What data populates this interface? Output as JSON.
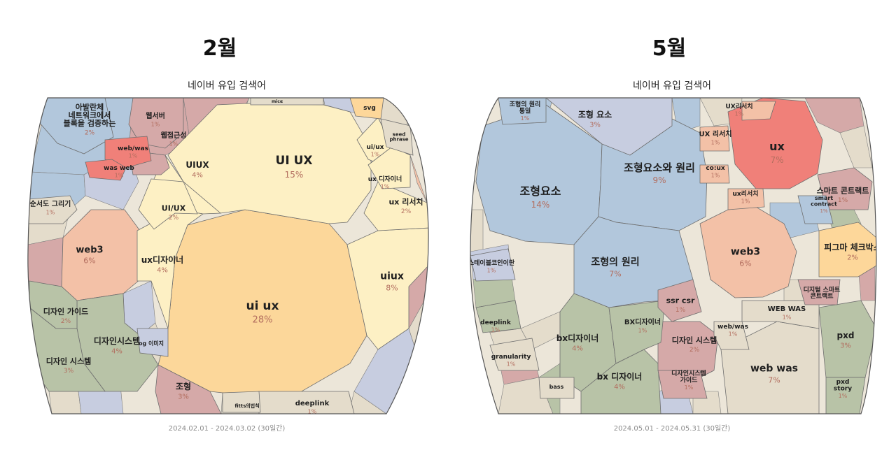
{
  "left": {
    "month": "2월",
    "chart_title": "네이버 유입 검색어",
    "date_range": "2024.02.01 - 2024.03.02 (30일간)"
  },
  "right": {
    "month": "5월",
    "chart_title": "네이버 유입 검색어",
    "date_range": "2024.05.01 - 2024.05.31 (30일간)"
  },
  "colors": {
    "orange": "#fcd79a",
    "light_yellow": "#fdf0c4",
    "peach": "#f3c1a7",
    "red": "#f08079",
    "blue": "#b2c7dc",
    "sage": "#b8c3a7",
    "mauve": "#d5a9a8",
    "beige": "#e4dccb",
    "lavender": "#c7cde0",
    "amber": "#fdd79a"
  },
  "chart_data": [
    {
      "type": "voronoi_treemap",
      "title": "네이버 유입 검색어",
      "month": "2월",
      "date_range": "2024.02.01 - 2024.03.02 (30일간)",
      "cells": [
        {
          "label": "ui ux",
          "value": 28,
          "pct": "28%",
          "color": "orange"
        },
        {
          "label": "UI UX",
          "value": 15,
          "pct": "15%",
          "color": "light_yellow"
        },
        {
          "label": "uiux",
          "value": 8,
          "pct": "8%",
          "color": "light_yellow"
        },
        {
          "label": "web3",
          "value": 6,
          "pct": "6%",
          "color": "peach"
        },
        {
          "label": "UIUX",
          "value": 4,
          "pct": "4%",
          "color": "light_yellow"
        },
        {
          "label": "ux디자이너",
          "value": 4,
          "pct": "4%",
          "color": "light_yellow"
        },
        {
          "label": "디자인시스템",
          "value": 4,
          "pct": "4%",
          "color": "sage"
        },
        {
          "label": "디자인 시스템",
          "value": 3,
          "pct": "3%",
          "color": "sage"
        },
        {
          "label": "조형",
          "value": 3,
          "pct": "3%",
          "color": "mauve"
        },
        {
          "label": "UI/UX",
          "value": 2,
          "pct": "2%",
          "color": "light_yellow"
        },
        {
          "label": "ux 리서치",
          "value": 2,
          "pct": "2%",
          "color": "light_yellow"
        },
        {
          "label": "디자인 가이드",
          "value": 2,
          "pct": "2%",
          "color": "sage"
        },
        {
          "label": "아발란체 네트워크에서 블록을 검증하는",
          "value": 2,
          "pct": "2%",
          "color": "blue"
        },
        {
          "label": "웹서버",
          "value": 1,
          "pct": "1%",
          "color": "mauve"
        },
        {
          "label": "웹접근성",
          "value": 1,
          "pct": "1%",
          "color": "mauve"
        },
        {
          "label": "web/was",
          "value": 1,
          "pct": "1%",
          "color": "red"
        },
        {
          "label": "was web",
          "value": 1,
          "pct": "1%",
          "color": "red"
        },
        {
          "label": "ui/ux",
          "value": 1,
          "pct": "1%",
          "color": "light_yellow"
        },
        {
          "label": "ux 디자이너",
          "value": 1,
          "pct": "1%",
          "color": "light_yellow"
        },
        {
          "label": "순서도 그리기",
          "value": 1,
          "pct": "1%",
          "color": "beige"
        },
        {
          "label": "deeplink",
          "value": 1,
          "pct": "1%",
          "color": "beige"
        },
        {
          "label": "svg",
          "value": 1,
          "pct": "",
          "color": "amber"
        },
        {
          "label": "seed phrase",
          "value": 1,
          "pct": "",
          "color": "beige"
        },
        {
          "label": "og 이미지",
          "value": 1,
          "pct": "",
          "color": "lavender"
        },
        {
          "label": "fitts의법칙",
          "value": 1,
          "pct": "",
          "color": "beige"
        },
        {
          "label": "micα",
          "value": 1,
          "pct": "",
          "color": "beige"
        }
      ]
    },
    {
      "type": "voronoi_treemap",
      "title": "네이버 유입 검색어",
      "month": "5월",
      "date_range": "2024.05.01 - 2024.05.31 (30일간)",
      "cells": [
        {
          "label": "조형요소",
          "value": 14,
          "pct": "14%",
          "color": "blue"
        },
        {
          "label": "조형요소와 원리",
          "value": 9,
          "pct": "9%",
          "color": "blue"
        },
        {
          "label": "ux",
          "value": 7,
          "pct": "7%",
          "color": "red"
        },
        {
          "label": "조형의 원리",
          "value": 7,
          "pct": "7%",
          "color": "blue"
        },
        {
          "label": "web was",
          "value": 7,
          "pct": "7%",
          "color": "beige"
        },
        {
          "label": "web3",
          "value": 6,
          "pct": "6%",
          "color": "peach"
        },
        {
          "label": "bx디자이너",
          "value": 4,
          "pct": "4%",
          "color": "sage"
        },
        {
          "label": "bx 디자이너",
          "value": 4,
          "pct": "4%",
          "color": "sage"
        },
        {
          "label": "조형 요소",
          "value": 3,
          "pct": "3%",
          "color": "lavender"
        },
        {
          "label": "pxd",
          "value": 3,
          "pct": "3%",
          "color": "sage"
        },
        {
          "label": "피그마 체크박스",
          "value": 2,
          "pct": "2%",
          "color": "amber"
        },
        {
          "label": "디자인 시스템",
          "value": 2,
          "pct": "2%",
          "color": "mauve"
        },
        {
          "label": "스마트 콘트랙트",
          "value": 1,
          "pct": "1%",
          "color": "mauve"
        },
        {
          "label": "BX디자이너",
          "value": 1,
          "pct": "1%",
          "color": "sage"
        },
        {
          "label": "WEB WAS",
          "value": 1,
          "pct": "1%",
          "color": "beige"
        },
        {
          "label": "web/was",
          "value": 1,
          "pct": "1%",
          "color": "beige"
        },
        {
          "label": "ssr csr",
          "value": 1,
          "pct": "1%",
          "color": "mauve"
        },
        {
          "label": "UX 리서치",
          "value": 1,
          "pct": "1%",
          "color": "peach"
        },
        {
          "label": "UX리서치",
          "value": 1,
          "pct": "1%",
          "color": "peach"
        },
        {
          "label": "ux리서치",
          "value": 1,
          "pct": "1%",
          "color": "peach"
        },
        {
          "label": "co:ux",
          "value": 1,
          "pct": "1%",
          "color": "peach"
        },
        {
          "label": "조형의 원리 통일",
          "value": 1,
          "pct": "1%",
          "color": "blue"
        },
        {
          "label": "스테이블코인이란",
          "value": 1,
          "pct": "1%",
          "color": "lavender"
        },
        {
          "label": "deeplink",
          "value": 1,
          "pct": "1%",
          "color": "sage"
        },
        {
          "label": "granularity",
          "value": 1,
          "pct": "1%",
          "color": "beige"
        },
        {
          "label": "디자인시스템 가이드",
          "value": 1,
          "pct": "1%",
          "color": "mauve"
        },
        {
          "label": "pxd story",
          "value": 1,
          "pct": "1%",
          "color": "sage"
        },
        {
          "label": "smart contract",
          "value": 1,
          "pct": "1%",
          "color": "blue"
        },
        {
          "label": "디지털 스마트 콘트랙트",
          "value": 1,
          "pct": "",
          "color": "mauve"
        },
        {
          "label": "bass",
          "value": 1,
          "pct": "",
          "color": "beige"
        }
      ]
    }
  ]
}
